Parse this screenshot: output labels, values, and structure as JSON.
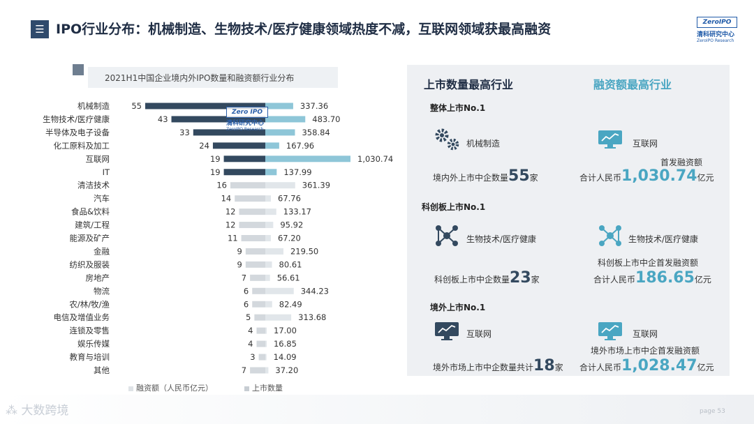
{
  "header": {
    "title": "IPO行业分布：机械制造、生物技术/医疗健康领域热度不减，互联网领域获最高融资",
    "menu_icon": "hamburger-icon",
    "logo": {
      "brand": "ZeroIPO",
      "name_cn": "清科研究中心",
      "name_en": "ZeroIPO Research"
    }
  },
  "chart_data": {
    "type": "bar",
    "title": "2021H1中国企业境内外IPO数量和融资额行业分布",
    "categories": [
      "机械制造",
      "生物技术/医疗健康",
      "半导体及电子设备",
      "化工原料及加工",
      "互联网",
      "IT",
      "清洁技术",
      "汽车",
      "食品&饮料",
      "建筑/工程",
      "能源及矿产",
      "金融",
      "纺织及服装",
      "房地产",
      "物流",
      "农/林/牧/渔",
      "电信及增值业务",
      "连锁及零售",
      "娱乐传媒",
      "教育与培训",
      "其他"
    ],
    "counts": [
      55,
      43,
      33,
      24,
      19,
      19,
      16,
      14,
      12,
      12,
      11,
      9,
      9,
      7,
      6,
      6,
      5,
      4,
      4,
      3,
      7
    ],
    "counts_labels": [
      "55",
      "43",
      "33",
      "24",
      "19",
      "19",
      "16",
      "14",
      "12",
      "12",
      "11",
      "9",
      "9",
      "7",
      "6",
      "6",
      "5",
      "4",
      "4",
      "3",
      "7"
    ],
    "amounts": [
      337.36,
      483.7,
      358.84,
      167.96,
      1030.74,
      137.99,
      361.39,
      67.76,
      133.17,
      95.92,
      67.2,
      219.5,
      80.61,
      56.61,
      344.23,
      82.49,
      313.68,
      17.0,
      16.85,
      14.09,
      37.2
    ],
    "amounts_labels": [
      "337.36",
      "483.70",
      "358.84",
      "167.96",
      "1,030.74",
      "137.99",
      "361.39",
      "67.76",
      "133.17",
      "95.92",
      "67.20",
      "219.50",
      "80.61",
      "56.61",
      "344.23",
      "82.49",
      "313.68",
      "17.00",
      "16.85",
      "14.09",
      "37.20"
    ],
    "highlight_rows": 6,
    "series": [
      {
        "name": "融资额（人民币亿元）",
        "color": "#8ec6d8",
        "color_light": "#e1e6ea"
      },
      {
        "name": "上市数量",
        "color": "#33495f",
        "color_light": "#d3d8dd"
      }
    ],
    "watermark": {
      "brand": "Zero IPO",
      "name_cn": "清科研究中心",
      "name_en": "ZeroIPO Research"
    }
  },
  "panel": {
    "head_left": "上市数量最高行业",
    "head_right": "融资额最高行业",
    "overall": {
      "title": "整体上市No.1",
      "left_industry": "机械制造",
      "left_prefix": "境内外上市中企数量",
      "left_value": "55",
      "left_suffix": "家",
      "right_industry": "互联网",
      "right_caption": "首发融资额",
      "right_prefix": "合计人民币",
      "right_value": "1,030.74",
      "right_suffix": "亿元"
    },
    "star": {
      "title": "科创板上市No.1",
      "left_industry": "生物技术/医疗健康",
      "left_prefix": "科创板上市中企数量",
      "left_value": "23",
      "left_suffix": "家",
      "right_industry": "生物技术/医疗健康",
      "right_caption": "科创板上市中企首发融资额",
      "right_prefix": "合计人民币",
      "right_value": "186.65",
      "right_suffix": "亿元"
    },
    "overseas": {
      "title": "境外上市No.1",
      "left_industry": "互联网",
      "left_prefix": "境外市场上市中企数量共计",
      "left_value": "18",
      "left_suffix": "家",
      "right_industry": "互联网",
      "right_caption": "境外市场上市中企首发融资额",
      "right_prefix": "合计人民币",
      "right_value": "1,028.47",
      "right_suffix": "亿元"
    }
  },
  "footer": {
    "brand": "大数跨境",
    "page": "page 53"
  }
}
